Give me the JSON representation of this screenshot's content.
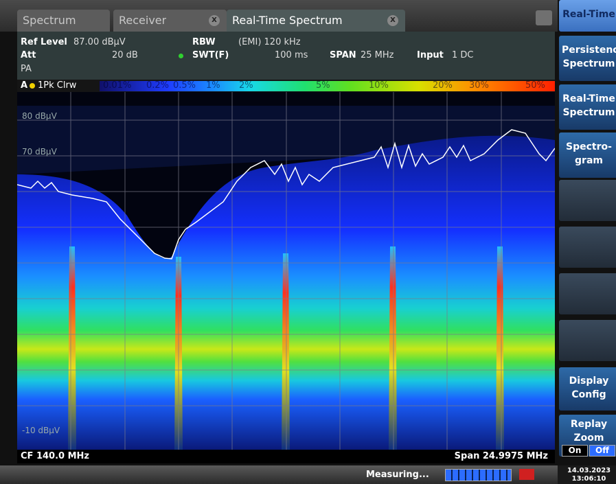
{
  "tabs": [
    {
      "label": "Spectrum"
    },
    {
      "label": "Receiver",
      "close": "X"
    },
    {
      "label": "Real-Time Spectrum",
      "close": "X"
    }
  ],
  "settings": {
    "ref_level_label": "Ref Level",
    "ref_level": "87.00 dBµV",
    "rbw_label": "RBW",
    "rbw": "(EMI) 120 kHz",
    "att_label": "Att",
    "att": "20 dB",
    "swt_label": "SWT(F)",
    "swt": "100 ms",
    "span_label": "SPAN",
    "span": "25 MHz",
    "input_label": "Input",
    "input": "1 DC",
    "pa": "PA"
  },
  "trace": {
    "window": "A",
    "label": "1Pk Clrw",
    "scale": [
      "0.01%",
      "0.2%",
      "0.5%",
      "1%",
      "2%",
      "5%",
      "10%",
      "20%",
      "30%",
      "50%"
    ]
  },
  "plot": {
    "y_labels": [
      "80 dBµV",
      "70 dBµV",
      "-10 dBµV"
    ],
    "cf": "CF 140.0 MHz",
    "span": "Span 24.9975 MHz"
  },
  "softkeys": [
    {
      "lines": [
        "Real-Time"
      ]
    },
    {
      "lines": [
        "Persistence",
        "Spectrum"
      ]
    },
    {
      "lines": [
        "Real-Time",
        "Spectrum"
      ]
    },
    {
      "lines": [
        "Spectro-",
        "gram"
      ]
    },
    {
      "lines": []
    },
    {
      "lines": []
    },
    {
      "lines": []
    },
    {
      "lines": []
    },
    {
      "lines": [
        "Display",
        "Config"
      ]
    },
    {
      "lines": [
        "Replay",
        "Zoom"
      ],
      "toggle": [
        "On",
        "Off"
      ]
    }
  ],
  "status": {
    "message": "Measuring...",
    "date": "14.03.2023",
    "time": "13:06:10"
  }
}
